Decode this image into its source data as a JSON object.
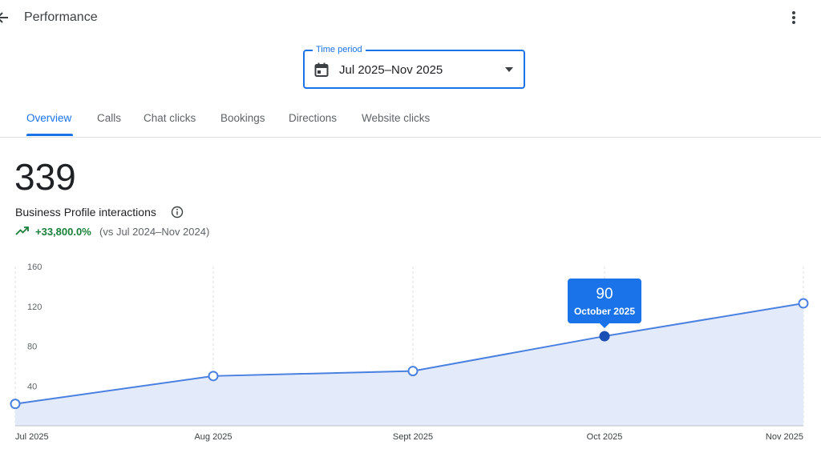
{
  "header": {
    "title": "Performance",
    "back_icon": "arrow-back-icon",
    "more_icon": "more-vert-icon"
  },
  "period": {
    "label": "Time period",
    "value": "Jul 2025–Nov 2025",
    "icon": "calendar-icon"
  },
  "tabs": [
    {
      "label": "Overview",
      "active": true
    },
    {
      "label": "Calls"
    },
    {
      "label": "Chat clicks"
    },
    {
      "label": "Bookings"
    },
    {
      "label": "Directions"
    },
    {
      "label": "Website clicks"
    }
  ],
  "summary": {
    "value": "339",
    "label": "Business Profile interactions",
    "change": "+33,800.0%",
    "comparison": "(vs Jul 2024–Nov 2024)"
  },
  "colors": {
    "accent": "#1a73e8",
    "line": "#4a80e0",
    "area": "#e3ebfb",
    "positive": "#188038"
  },
  "chart_data": {
    "type": "area",
    "categories": [
      "Jul 2025",
      "Aug 2025",
      "Sept 2025",
      "Oct 2025",
      "Nov 2025"
    ],
    "values": [
      22,
      50,
      55,
      90,
      123
    ],
    "y_ticks": [
      40,
      80,
      120,
      160
    ],
    "ylim": [
      0,
      160
    ],
    "tooltip": {
      "value": "90",
      "label": "October 2025",
      "index": 3
    }
  }
}
